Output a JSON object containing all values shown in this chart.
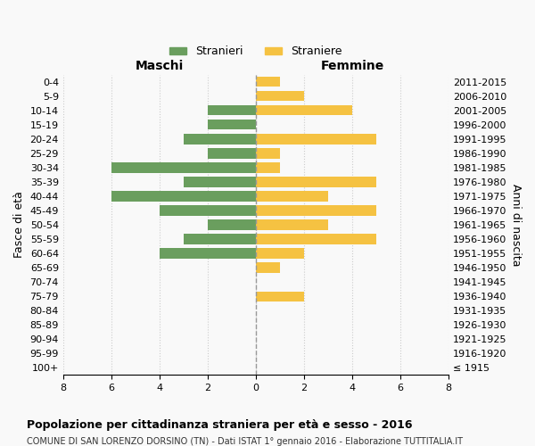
{
  "age_groups": [
    "100+",
    "95-99",
    "90-94",
    "85-89",
    "80-84",
    "75-79",
    "70-74",
    "65-69",
    "60-64",
    "55-59",
    "50-54",
    "45-49",
    "40-44",
    "35-39",
    "30-34",
    "25-29",
    "20-24",
    "15-19",
    "10-14",
    "5-9",
    "0-4"
  ],
  "birth_years": [
    "≤ 1915",
    "1916-1920",
    "1921-1925",
    "1926-1930",
    "1931-1935",
    "1936-1940",
    "1941-1945",
    "1946-1950",
    "1951-1955",
    "1956-1960",
    "1961-1965",
    "1966-1970",
    "1971-1975",
    "1976-1980",
    "1981-1985",
    "1986-1990",
    "1991-1995",
    "1996-2000",
    "2001-2005",
    "2006-2010",
    "2011-2015"
  ],
  "maschi": [
    0,
    0,
    0,
    0,
    0,
    0,
    0,
    0,
    4,
    3,
    2,
    4,
    6,
    3,
    6,
    2,
    3,
    2,
    2,
    0,
    0
  ],
  "femmine": [
    0,
    0,
    0,
    0,
    0,
    2,
    0,
    1,
    2,
    5,
    3,
    5,
    3,
    5,
    1,
    1,
    5,
    0,
    4,
    2,
    1
  ],
  "male_color": "#6a9e5e",
  "female_color": "#f5c242",
  "xlim": 8,
  "title": "Popolazione per cittadinanza straniera per età e sesso - 2016",
  "subtitle": "COMUNE DI SAN LORENZO DORSINO (TN) - Dati ISTAT 1° gennaio 2016 - Elaborazione TUTTITALIA.IT",
  "ylabel_left": "Fasce di età",
  "ylabel_right": "Anni di nascita",
  "legend_male": "Stranieri",
  "legend_female": "Straniere",
  "maschi_label": "Maschi",
  "femmine_label": "Femmine",
  "bg_color": "#f9f9f9",
  "grid_color": "#cccccc",
  "dashed_line_color": "#999999"
}
